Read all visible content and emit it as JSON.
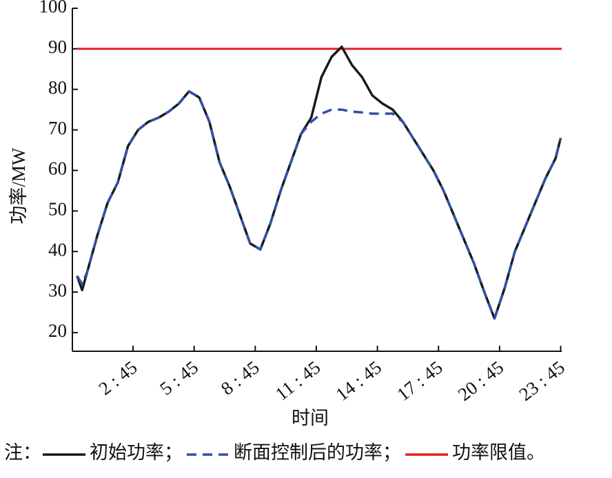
{
  "chart_data": {
    "type": "line",
    "y_label": "功率/MW",
    "x_label": "时间",
    "legend_prefix": "注：",
    "x": [
      0,
      0.25,
      0.5,
      1,
      1.5,
      2,
      2.5,
      3,
      3.5,
      4,
      4.5,
      5,
      5.5,
      6,
      6.5,
      7,
      7.5,
      8,
      8.5,
      9,
      9.5,
      10,
      10.5,
      11,
      11.5,
      12,
      12.5,
      13,
      13.5,
      14,
      14.5,
      15,
      15.5,
      16,
      16.5,
      17,
      17.5,
      18,
      18.5,
      19,
      19.5,
      20,
      20.5,
      21,
      21.5,
      22,
      22.5,
      23,
      23.5,
      23.75
    ],
    "series": [
      {
        "name": "初始功率；",
        "color": "#1a1a1a",
        "dash": false,
        "values": [
          34,
          30.5,
          35,
          44,
          52,
          57,
          66,
          70,
          72,
          73,
          74.5,
          76.5,
          79.5,
          78,
          72,
          62,
          56,
          49,
          42,
          40.5,
          47,
          55,
          62,
          69,
          73,
          83,
          88,
          90.5,
          86,
          83,
          78.5,
          76.5,
          75,
          72,
          68,
          64,
          60,
          55,
          49,
          43,
          37,
          30,
          23.5,
          31,
          40,
          46,
          52,
          58,
          63,
          68
        ]
      },
      {
        "name": "断面控制后的功率；",
        "color": "#2f4fa8",
        "dash": true,
        "values": [
          34,
          32,
          35,
          44,
          52,
          57,
          66,
          70,
          72,
          73,
          74.5,
          76.5,
          79.5,
          78,
          72,
          62,
          56,
          49,
          42,
          40.5,
          47,
          55,
          62,
          69,
          72,
          74,
          75,
          75,
          74.5,
          74.3,
          74,
          74,
          74,
          72,
          68,
          64,
          60,
          55,
          49,
          43,
          37,
          30,
          23.5,
          31,
          40,
          46,
          52,
          58,
          63,
          68
        ]
      }
    ],
    "limit": {
      "name": "功率限值。",
      "value": 90,
      "color": "#e02020"
    },
    "xlim": [
      -0.23,
      23.8
    ],
    "ylim": [
      15.4,
      100
    ],
    "xticks": [
      {
        "value": 2.75,
        "label": "2 : 45"
      },
      {
        "value": 5.75,
        "label": "5 : 45"
      },
      {
        "value": 8.75,
        "label": "8 : 45"
      },
      {
        "value": 11.75,
        "label": "11 : 45"
      },
      {
        "value": 14.75,
        "label": "14 : 45"
      },
      {
        "value": 17.75,
        "label": "17 : 45"
      },
      {
        "value": 20.75,
        "label": "20 : 45"
      },
      {
        "value": 23.75,
        "label": "23 : 45"
      }
    ],
    "yticks": [
      20,
      30,
      40,
      50,
      60,
      70,
      80,
      90,
      100
    ]
  }
}
